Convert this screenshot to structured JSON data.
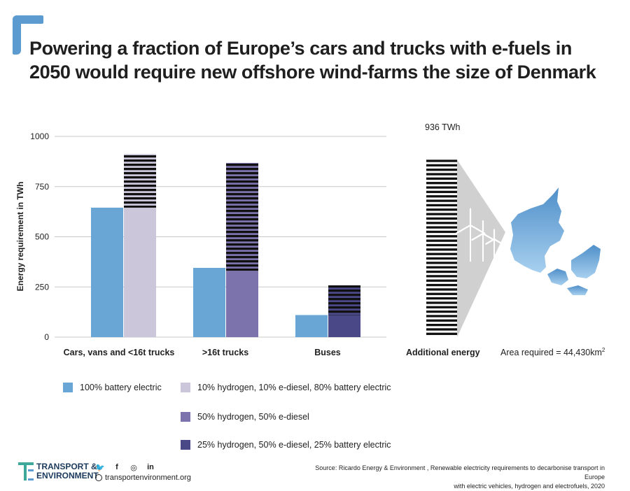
{
  "title": "Powering a fraction of Europe’s cars and trucks with e-fuels in 2050 would require new offshore wind-farms the size of Denmark",
  "colors": {
    "accent": "#5b9bd0",
    "battery": "#6aa6d5",
    "h10": "#cbc6da",
    "h50": "#7c72ac",
    "h25": "#4b4888",
    "stripe": "#111111"
  },
  "chart_data": [
    {
      "type": "bar",
      "ylabel": "Energy requirement in TWh",
      "ylim": [
        0,
        1000
      ],
      "yticks": [
        0,
        250,
        500,
        750,
        1000
      ],
      "grid": true,
      "categories": [
        "Cars, vans and <16t trucks",
        ">16t trucks",
        "Buses"
      ],
      "series": [
        {
          "name": "100% battery electric",
          "color_key": "battery",
          "values": [
            645,
            345,
            110
          ]
        },
        {
          "name": "10% hydrogen, 10% e-diesel, 80% battery electric",
          "color_key": "h10",
          "values": [
            912,
            null,
            null
          ],
          "solid_part": [
            645,
            null,
            null
          ]
        },
        {
          "name": "50% hydrogen, 50% e-diesel",
          "color_key": "h50",
          "values": [
            null,
            868,
            null
          ],
          "solid_part": [
            null,
            330,
            null
          ]
        },
        {
          "name": "25% hydrogen, 50% e-diesel, 25% battery electric",
          "color_key": "h25",
          "values": [
            null,
            null,
            258
          ],
          "solid_part": [
            null,
            null,
            110
          ]
        }
      ]
    },
    {
      "type": "bar",
      "categories": [
        "Additional  energy"
      ],
      "values": [
        936
      ],
      "value_label": "936 TWh"
    }
  ],
  "illustration": {
    "area_label": "Area required = ",
    "area_value": "44,430km",
    "area_sup": "2",
    "icons": [
      "wind-turbine-icon",
      "denmark-map-icon"
    ]
  },
  "footer": {
    "logo_line1": "TRANSPORT &",
    "logo_line2": "ENVIRONMENT",
    "social": [
      "twitter-icon",
      "facebook-icon",
      "instagram-icon",
      "linkedin-icon"
    ],
    "social_glyphs": [
      "🐦",
      "f",
      "◎",
      "in"
    ],
    "website": "transportenvironment.org",
    "source_line1": "Source: Ricardo Energy & Environment , Renewable electricity requirements to decarbonise transport in Europe",
    "source_line2": "with electric vehicles, hydrogen and electrofuels, 2020"
  }
}
